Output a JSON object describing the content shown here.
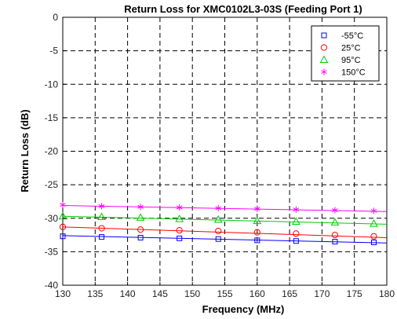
{
  "chart_data": {
    "type": "scatter",
    "title": "Return Loss for XMC0102L3-03S (Feeding Port 1)",
    "xlabel": "Frequency (MHz)",
    "ylabel": "Return Loss (dB)",
    "xlim": [
      130,
      180
    ],
    "ylim": [
      -40,
      0
    ],
    "xticks": [
      130,
      135,
      140,
      145,
      150,
      155,
      160,
      165,
      170,
      175,
      180
    ],
    "yticks": [
      0,
      -5,
      -10,
      -15,
      -20,
      -25,
      -30,
      -35,
      -40
    ],
    "grid": true,
    "legend_position": "top-right",
    "x": [
      130,
      136,
      142,
      148,
      154,
      160,
      166,
      172,
      178
    ],
    "series": [
      {
        "name": "-55°C",
        "marker": "square",
        "color": "#0000ff",
        "values": [
          -32.7,
          -32.8,
          -32.9,
          -33.0,
          -33.1,
          -33.3,
          -33.4,
          -33.5,
          -33.6
        ],
        "fit": [
          -32.6,
          -33.7
        ]
      },
      {
        "name": "25°C",
        "marker": "circle",
        "color": "#ff0000",
        "values": [
          -31.3,
          -31.5,
          -31.7,
          -31.8,
          -31.9,
          -32.1,
          -32.3,
          -32.5,
          -32.7
        ],
        "fit": [
          -31.3,
          -32.9
        ]
      },
      {
        "name": "95°C",
        "marker": "triangle",
        "color": "#00cc00",
        "values": [
          -29.7,
          -29.8,
          -29.9,
          -30.1,
          -30.2,
          -30.4,
          -30.5,
          -30.6,
          -30.8
        ],
        "fit": [
          -29.7,
          -30.9
        ]
      },
      {
        "name": "150°C",
        "marker": "asterisk",
        "color": "#ff00ff",
        "values": [
          -28.0,
          -28.2,
          -28.3,
          -28.4,
          -28.5,
          -28.6,
          -28.7,
          -28.8,
          -28.9
        ],
        "fit": [
          -28.1,
          -29.0
        ]
      }
    ]
  }
}
